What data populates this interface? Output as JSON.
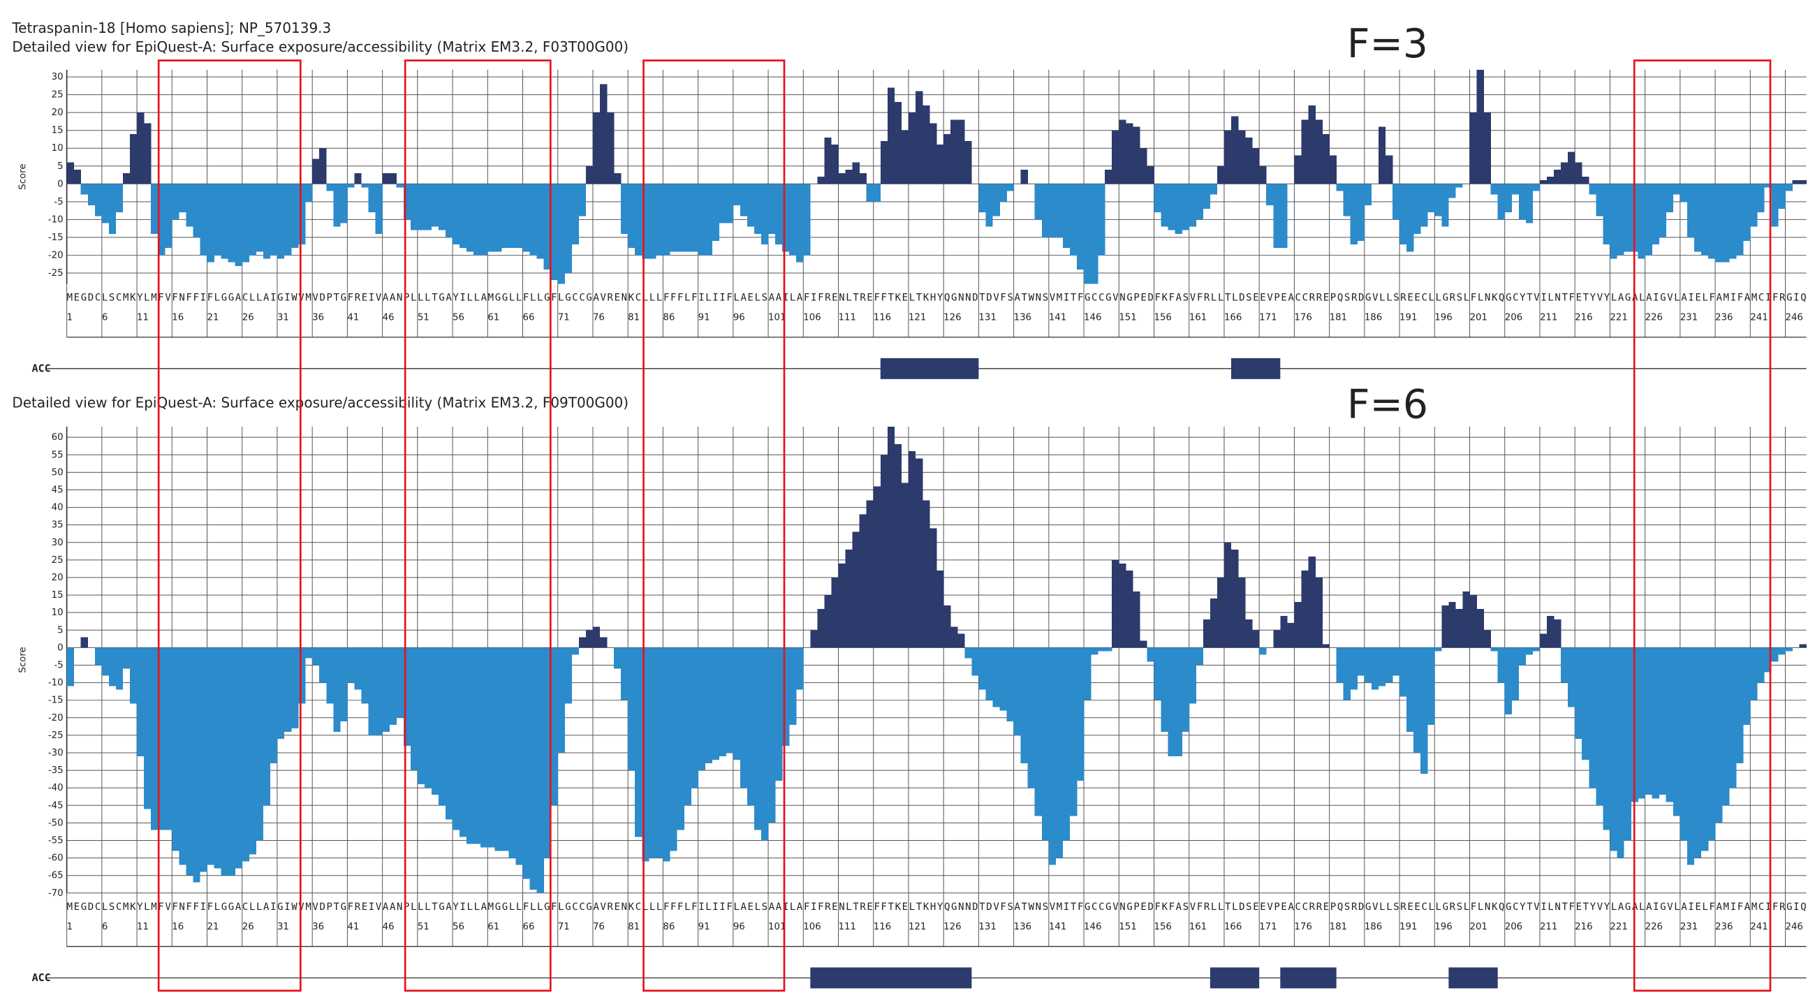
{
  "header": {
    "title": "Tetraspanin-18 [Homo sapiens]; NP_570139.3"
  },
  "sequence": "MEGDCLSCMKYLMFVFNFFIFLGGACLLAIGIWVMVDPTGFREIVAANPLLLTGAYILLAMGGLLFLLGFLGCCGAVRENKCLLLFFFLFILIIFLAELSAAILAFIFRENLTREFFTKELTKHYQGNNDTDVFSATWNSVMITFGCCGVNGPEDFKFASVFRLLTLDSEEVPEACCRREPQSRDGVLLSREECLLGRSLFLNKQGCYTVILNTFETYVYLAGALAIGVLAIELFAMIFAMCIFRGIQ",
  "chart_data": [
    {
      "type": "bar",
      "title": "Detailed view for EpiQuest-A: Surface exposure/accessibility (Matrix EM3.2, F03T00G00)",
      "annotation": "F=3",
      "y_label": "Score",
      "track_label": "ACC",
      "positive_color": "#2c3a6c",
      "negative_color": "#2b8bcb",
      "grid": true,
      "ylim": [
        -28,
        32
      ],
      "yticks": [
        30,
        25,
        20,
        15,
        10,
        5,
        0,
        -5,
        -10,
        -15,
        -20,
        -25
      ],
      "xticks": [
        1,
        6,
        11,
        16,
        21,
        26,
        31,
        36,
        41,
        46,
        51,
        56,
        61,
        66,
        71,
        76,
        81,
        86,
        91,
        96,
        101,
        106,
        111,
        116,
        121,
        126,
        131,
        136,
        141,
        146,
        151,
        156,
        161,
        166,
        171,
        176,
        181,
        186,
        191,
        196,
        201,
        206,
        211,
        216,
        221,
        226,
        231,
        236,
        241,
        246
      ],
      "acc": [
        [
          117,
          131
        ],
        [
          167,
          174
        ]
      ],
      "values": [
        6,
        4,
        -3,
        -6,
        -9,
        -11,
        -14,
        -8,
        3,
        14,
        20,
        17,
        -14,
        -20,
        -18,
        -10,
        -8,
        -12,
        -15,
        -20,
        -22,
        -20,
        -21,
        -22,
        -23,
        -22,
        -20,
        -19,
        -21,
        -20,
        -21,
        -20,
        -18,
        -17,
        -5,
        7,
        10,
        -2,
        -12,
        -11,
        -1,
        3,
        -1,
        -8,
        -14,
        3,
        3,
        -1,
        -10,
        -13,
        -13,
        -13,
        -12,
        -13,
        -15,
        -17,
        -18,
        -19,
        -20,
        -20,
        -19,
        -19,
        -18,
        -18,
        -18,
        -19,
        -20,
        -21,
        -24,
        -27,
        -28,
        -25,
        -17,
        -9,
        5,
        20,
        28,
        20,
        3,
        -14,
        -18,
        -20,
        -21,
        -21,
        -20,
        -20,
        -19,
        -19,
        -19,
        -19,
        -20,
        -20,
        -16,
        -11,
        -11,
        -6,
        -9,
        -12,
        -14,
        -17,
        -14,
        -17,
        -19,
        -20,
        -22,
        -20,
        0,
        2,
        13,
        11,
        3,
        4,
        6,
        3,
        -5,
        -5,
        12,
        27,
        23,
        15,
        20,
        26,
        22,
        17,
        11,
        14,
        18,
        18,
        12,
        0,
        -8,
        -12,
        -9,
        -5,
        -2,
        0,
        4,
        0,
        -10,
        -15,
        -15,
        -15,
        -18,
        -20,
        -24,
        -28,
        -28,
        -20,
        4,
        15,
        18,
        17,
        16,
        10,
        5,
        -8,
        -12,
        -13,
        -14,
        -13,
        -12,
        -10,
        -7,
        -3,
        5,
        15,
        19,
        15,
        13,
        10,
        5,
        -6,
        -18,
        -18,
        0,
        8,
        18,
        22,
        18,
        14,
        8,
        -2,
        -9,
        -17,
        -16,
        -6,
        0,
        16,
        8,
        -10,
        -17,
        -19,
        -14,
        -12,
        -8,
        -9,
        -12,
        -4,
        -1,
        0,
        20,
        32,
        20,
        -3,
        -10,
        -8,
        -3,
        -10,
        -11,
        -2,
        1,
        2,
        4,
        6,
        9,
        6,
        2,
        -3,
        -9,
        -17,
        -21,
        -20,
        -19,
        -19,
        -21,
        -20,
        -17,
        -15,
        -8,
        -3,
        -5,
        -15,
        -19,
        -20,
        -21,
        -22,
        -22,
        -21,
        -20,
        -16,
        -12,
        -8,
        -1,
        -12,
        -7,
        -2,
        1,
        1
      ]
    },
    {
      "type": "bar",
      "title": "Detailed view for EpiQuest-A: Surface exposure/accessibility (Matrix EM3.2, F09T00G00)",
      "annotation": "F=6",
      "y_label": "Score",
      "track_label": "ACC",
      "positive_color": "#2c3a6c",
      "negative_color": "#2b8bcb",
      "grid": true,
      "ylim": [
        -70,
        63
      ],
      "yticks": [
        60,
        55,
        50,
        45,
        40,
        35,
        30,
        25,
        20,
        15,
        10,
        5,
        0,
        -5,
        -10,
        -15,
        -20,
        -25,
        -30,
        -35,
        -40,
        -45,
        -50,
        -55,
        -60,
        -65,
        -70
      ],
      "xticks": [
        1,
        6,
        11,
        16,
        21,
        26,
        31,
        36,
        41,
        46,
        51,
        56,
        61,
        66,
        71,
        76,
        81,
        86,
        91,
        96,
        101,
        106,
        111,
        116,
        121,
        126,
        131,
        136,
        141,
        146,
        151,
        156,
        161,
        166,
        171,
        176,
        181,
        186,
        191,
        196,
        201,
        206,
        211,
        216,
        221,
        226,
        231,
        236,
        241,
        246
      ],
      "acc": [
        [
          107,
          130
        ],
        [
          164,
          171
        ],
        [
          174,
          182
        ],
        [
          198,
          205
        ]
      ],
      "values": [
        -11,
        0,
        3,
        0,
        -5,
        -8,
        -11,
        -12,
        -6,
        -16,
        -31,
        -46,
        -52,
        -52,
        -52,
        -58,
        -62,
        -65,
        -67,
        -64,
        -62,
        -63,
        -65,
        -65,
        -63,
        -61,
        -59,
        -55,
        -45,
        -33,
        -26,
        -24,
        -23,
        -16,
        -3,
        -5,
        -10,
        -16,
        -24,
        -21,
        -10,
        -12,
        -16,
        -25,
        -25,
        -24,
        -22,
        -20,
        -28,
        -35,
        -39,
        -40,
        -42,
        -45,
        -49,
        -52,
        -54,
        -56,
        -56,
        -57,
        -57,
        -58,
        -58,
        -60,
        -62,
        -66,
        -69,
        -70,
        -60,
        -45,
        -30,
        -16,
        -2,
        3,
        5,
        6,
        3,
        0,
        -6,
        -15,
        -35,
        -54,
        -61,
        -60,
        -60,
        -61,
        -58,
        -52,
        -45,
        -40,
        -35,
        -33,
        -32,
        -31,
        -30,
        -32,
        -40,
        -45,
        -52,
        -55,
        -50,
        -38,
        -28,
        -22,
        -12,
        0,
        5,
        11,
        15,
        20,
        24,
        28,
        33,
        38,
        42,
        46,
        55,
        63,
        58,
        47,
        56,
        54,
        42,
        34,
        22,
        12,
        6,
        4,
        -3,
        -8,
        -12,
        -15,
        -17,
        -18,
        -21,
        -25,
        -33,
        -40,
        -48,
        -55,
        -62,
        -60,
        -55,
        -48,
        -38,
        -15,
        -2,
        -1,
        -1,
        25,
        24,
        22,
        16,
        2,
        -4,
        -15,
        -24,
        -31,
        -31,
        -24,
        -16,
        -5,
        8,
        14,
        20,
        30,
        28,
        20,
        8,
        5,
        -2,
        0,
        5,
        9,
        7,
        13,
        22,
        26,
        20,
        1,
        0,
        -10,
        -15,
        -12,
        -8,
        -10,
        -12,
        -11,
        -10,
        -8,
        -14,
        -24,
        -30,
        -36,
        -22,
        -1,
        12,
        13,
        11,
        16,
        15,
        11,
        5,
        -1,
        -10,
        -19,
        -15,
        -5,
        -2,
        -1,
        4,
        9,
        8,
        -10,
        -17,
        -26,
        -32,
        -40,
        -45,
        -52,
        -58,
        -60,
        -55,
        -44,
        -43,
        -42,
        -43,
        -42,
        -44,
        -48,
        -55,
        -62,
        -60,
        -58,
        -55,
        -50,
        -45,
        -40,
        -33,
        -22,
        -15,
        -10,
        -7,
        -4,
        -2,
        -1,
        0,
        1
      ]
    }
  ]
}
